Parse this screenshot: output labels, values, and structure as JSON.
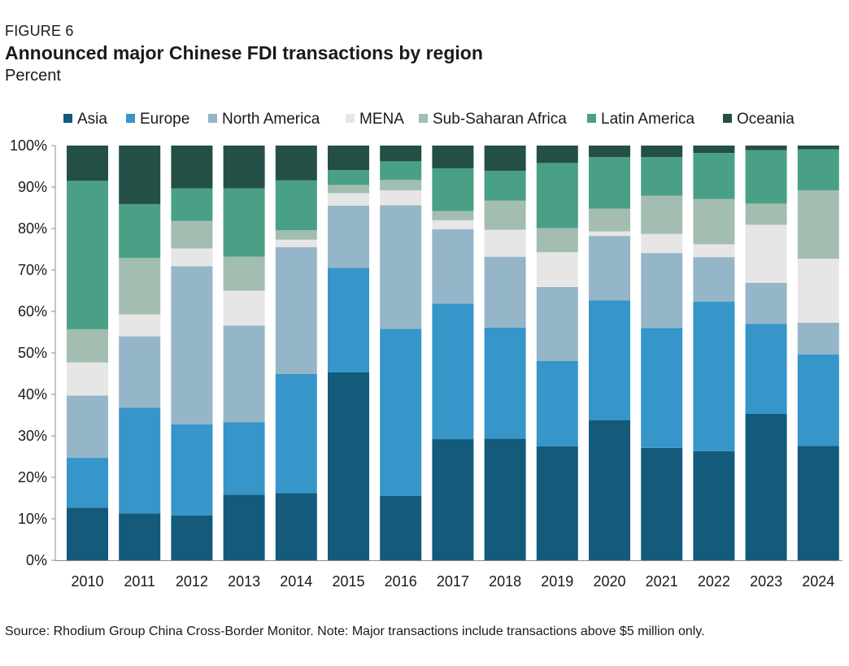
{
  "figure_label": "FIGURE 6",
  "title": "Announced major Chinese FDI transactions by region",
  "subtitle": "Percent",
  "source": "Source: Rhodium Group China Cross-Border Monitor. Note: Major transactions include transactions above $5 million only.",
  "colors": {
    "Asia": "#135a7b",
    "Europe": "#3695c9",
    "North America": "#95b5c9",
    "MENA": "#e6e6e6",
    "Sub-Saharan Africa": "#a3bdb1",
    "Latin America": "#4aa086",
    "Oceania": "#244f47"
  },
  "chart_data": {
    "type": "bar",
    "stacked": true,
    "title": "Announced major Chinese FDI transactions by region",
    "ylabel": "Percent",
    "xlabel": "",
    "ylim": [
      0,
      100
    ],
    "yticks": [
      0,
      10,
      20,
      30,
      40,
      50,
      60,
      70,
      80,
      90,
      100
    ],
    "ytick_labels": [
      "0%",
      "10%",
      "20%",
      "30%",
      "40%",
      "50%",
      "60%",
      "70%",
      "80%",
      "90%",
      "100%"
    ],
    "legend_position": "top",
    "categories": [
      "2010",
      "2011",
      "2012",
      "2013",
      "2014",
      "2015",
      "2016",
      "2017",
      "2018",
      "2019",
      "2020",
      "2021",
      "2022",
      "2023",
      "2024"
    ],
    "series": [
      {
        "name": "Asia",
        "values": [
          12.7,
          11.3,
          10.8,
          15.8,
          16.2,
          45.3,
          15.5,
          29.2,
          29.3,
          27.5,
          33.8,
          27.1,
          26.3,
          35.3,
          27.6
        ]
      },
      {
        "name": "Europe",
        "values": [
          12.0,
          25.5,
          22.0,
          17.5,
          28.7,
          25.2,
          40.3,
          32.7,
          26.8,
          20.6,
          28.9,
          28.9,
          36.1,
          21.7,
          22.0
        ]
      },
      {
        "name": "North America",
        "values": [
          15.0,
          17.2,
          38.1,
          23.3,
          30.6,
          15.0,
          29.8,
          17.9,
          17.1,
          17.8,
          15.5,
          18.1,
          10.7,
          9.9,
          7.7
        ]
      },
      {
        "name": "MENA",
        "values": [
          8.0,
          5.3,
          4.3,
          8.4,
          1.8,
          3.0,
          3.6,
          2.2,
          6.5,
          8.4,
          1.1,
          4.6,
          3.1,
          14.0,
          15.4
        ]
      },
      {
        "name": "Sub-Saharan Africa",
        "values": [
          8.0,
          13.6,
          6.6,
          8.2,
          2.3,
          2.0,
          2.5,
          2.2,
          7.0,
          5.8,
          5.5,
          9.2,
          10.9,
          5.1,
          16.5
        ]
      },
      {
        "name": "Latin America",
        "values": [
          35.8,
          13.0,
          7.9,
          16.5,
          12.0,
          3.6,
          4.5,
          10.3,
          7.2,
          15.7,
          12.4,
          9.3,
          11.1,
          12.9,
          9.9
        ]
      },
      {
        "name": "Oceania",
        "values": [
          8.5,
          14.1,
          10.3,
          10.3,
          8.4,
          5.9,
          3.8,
          5.5,
          6.1,
          4.2,
          2.8,
          2.8,
          1.8,
          1.1,
          0.9
        ]
      }
    ]
  }
}
